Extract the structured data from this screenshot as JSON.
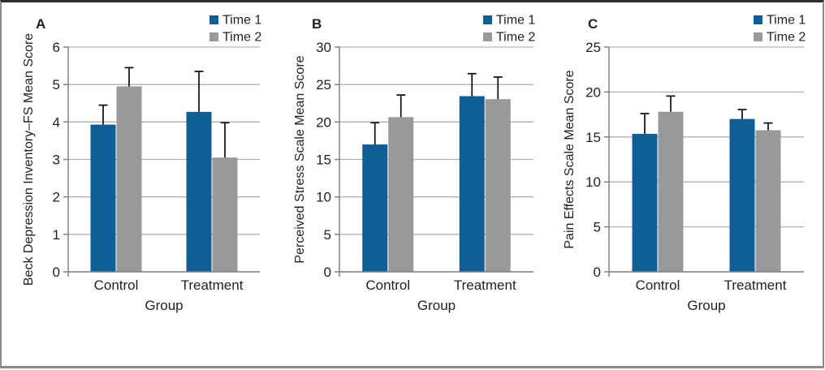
{
  "figure": {
    "description": "Three-panel grouped bar chart comparing Control and Treatment groups at Time 1 and Time 2",
    "legend_labels": [
      "Time 1",
      "Time 2"
    ],
    "colors": {
      "time1_blue": "#0F5E96",
      "time2_gray": "#97999B",
      "gridline": "#AFB1B4",
      "axis": "#808285",
      "text": "#231F20",
      "error_bar": "#1A1A1A",
      "border_top": "#2D2D2D",
      "border_gray": "#8A8C8F"
    }
  },
  "chart_data": [
    {
      "type": "bar",
      "panel_label": "A",
      "categories": [
        "Control",
        "Treatment"
      ],
      "series": [
        {
          "name": "Time 1",
          "color": "#0F5E96",
          "values": [
            3.93,
            4.27
          ],
          "errors_plus": [
            0.52,
            1.08
          ]
        },
        {
          "name": "Time 2",
          "color": "#97999B",
          "values": [
            4.95,
            3.05
          ],
          "errors_plus": [
            0.5,
            0.93
          ]
        }
      ],
      "xlabel": "Group",
      "ylabel": "Beck Depression Inventory–FS Mean Score",
      "ylim": [
        0,
        6
      ],
      "ystep": 1,
      "grid": true,
      "legend_position": "top-right"
    },
    {
      "type": "bar",
      "panel_label": "B",
      "categories": [
        "Control",
        "Treatment"
      ],
      "series": [
        {
          "name": "Time 1",
          "color": "#0F5E96",
          "values": [
            17.0,
            23.45
          ],
          "errors_plus": [
            2.9,
            3.0
          ]
        },
        {
          "name": "Time 2",
          "color": "#97999B",
          "values": [
            20.65,
            23.05
          ],
          "errors_plus": [
            2.95,
            2.95
          ]
        }
      ],
      "xlabel": "Group",
      "ylabel": "Perceived Stress Scale Mean Score",
      "ylim": [
        0,
        30
      ],
      "ystep": 5,
      "grid": true,
      "legend_position": "top-right"
    },
    {
      "type": "bar",
      "panel_label": "C",
      "categories": [
        "Control",
        "Treatment"
      ],
      "series": [
        {
          "name": "Time 1",
          "color": "#0F5E96",
          "values": [
            15.35,
            17.0
          ],
          "errors_plus": [
            2.25,
            1.05
          ]
        },
        {
          "name": "Time 2",
          "color": "#97999B",
          "values": [
            17.8,
            15.75
          ],
          "errors_plus": [
            1.75,
            0.8
          ]
        }
      ],
      "xlabel": "Group",
      "ylabel": "Pain Effects Scale Mean Score",
      "ylim": [
        0,
        25
      ],
      "ystep": 5,
      "grid": true,
      "legend_position": "top-right"
    }
  ]
}
